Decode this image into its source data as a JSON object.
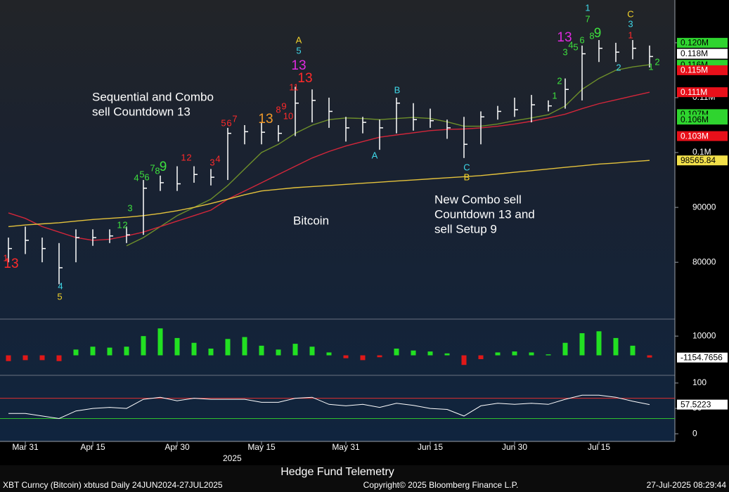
{
  "chart_data": [
    {
      "type": "ohlc",
      "name": "main",
      "categories": [
        null,
        "Mar 31",
        null,
        null,
        null,
        "Apr 15",
        null,
        null,
        null,
        null,
        "Apr 30",
        null,
        null,
        null,
        null,
        "May 15",
        null,
        null,
        null,
        null,
        "May 31",
        null,
        null,
        null,
        null,
        "Jun 15",
        null,
        null,
        null,
        null,
        "Jun 30",
        null,
        null,
        null,
        null,
        "Jul 15",
        null,
        null,
        null
      ],
      "x_year": "2025",
      "close": [
        82500,
        84000,
        82500,
        79000,
        84500,
        84500,
        84800,
        85000,
        93500,
        94500,
        94300,
        96000,
        95500,
        103500,
        103800,
        103700,
        103500,
        109000,
        109500,
        107500,
        104500,
        105500,
        104500,
        109000,
        106000,
        105800,
        104500,
        101500,
        106500,
        107500,
        107800,
        108700,
        108500,
        111500,
        118000,
        119000,
        118300,
        119000,
        117500
      ],
      "high": [
        84500,
        86500,
        84500,
        83500,
        86000,
        86000,
        86000,
        86500,
        95000,
        95800,
        97500,
        97500,
        97000,
        104500,
        105000,
        105500,
        105000,
        112000,
        111500,
        110000,
        106500,
        106500,
        106000,
        110000,
        109000,
        108000,
        106000,
        106500,
        107500,
        108500,
        110000,
        110500,
        109500,
        113500,
        119500,
        120500,
        120000,
        120500,
        119500
      ],
      "low": [
        80000,
        81500,
        80000,
        76000,
        80000,
        83000,
        83500,
        83500,
        85000,
        93000,
        93000,
        94500,
        94000,
        95000,
        101500,
        101500,
        102000,
        103000,
        105500,
        104500,
        102000,
        103500,
        100500,
        103500,
        104000,
        104500,
        102500,
        99000,
        101500,
        106000,
        106500,
        105500,
        107500,
        108000,
        109500,
        116500,
        116500,
        117000,
        115500
      ],
      "bar_color": "#ffffff",
      "series": [
        {
          "color": "#6e8f2a",
          "values": [
            null,
            null,
            null,
            null,
            null,
            null,
            null,
            83000,
            84500,
            86500,
            88500,
            90000,
            91500,
            94000,
            97000,
            100000,
            101500,
            103500,
            105000,
            106000,
            106300,
            106200,
            106000,
            106200,
            106400,
            106200,
            105600,
            104800,
            104800,
            105200,
            105800,
            106300,
            106900,
            108500,
            111500,
            113500,
            115000,
            115600,
            116000
          ]
        },
        {
          "color": "#d2263a",
          "values": [
            89000,
            88000,
            86500,
            85500,
            84500,
            84000,
            84200,
            84800,
            85500,
            86500,
            87500,
            88500,
            89500,
            91500,
            93000,
            94500,
            96000,
            97500,
            99000,
            100200,
            101200,
            102000,
            102800,
            103200,
            103600,
            104000,
            104200,
            104300,
            104500,
            104800,
            105200,
            105700,
            106300,
            107000,
            108000,
            108900,
            109600,
            110300,
            111000
          ]
        },
        {
          "color": "#e4c23c",
          "values": [
            86500,
            86800,
            87000,
            87200,
            87500,
            87800,
            88000,
            88200,
            88500,
            88900,
            89400,
            90000,
            90700,
            91500,
            92300,
            93000,
            93300,
            93600,
            93800,
            94000,
            94200,
            94400,
            94600,
            94800,
            95000,
            95200,
            95400,
            95600,
            95800,
            96100,
            96400,
            96700,
            97000,
            97300,
            97600,
            97900,
            98100,
            98350,
            98565.84
          ]
        }
      ],
      "ylim": [
        69900,
        127800
      ],
      "yticks": [
        80000,
        90000,
        {
          "value": 100000,
          "label": "0.1M"
        },
        {
          "value": 110000,
          "label": "0.11M"
        },
        {
          "value": 120000,
          "label": "0.12M"
        }
      ],
      "value_boxes": [
        {
          "value": 120000,
          "label": "0.120M",
          "color": "#2fd42f"
        },
        {
          "value": 118000,
          "label": "0.118M",
          "color": "#ffffff"
        },
        {
          "value": 116000,
          "label": "0.116M",
          "color": "#2fd42f"
        },
        {
          "value": 115000,
          "label": "0.115M",
          "color": "#e8101a"
        },
        {
          "value": 111000,
          "label": "0.111M",
          "color": "#e8101a"
        },
        {
          "value": 107000,
          "label": "0.107M",
          "color": "#2fd42f"
        },
        {
          "value": 106000,
          "label": "0.106M",
          "color": "#2fd42f"
        },
        {
          "value": 103000,
          "label": "0.103M",
          "color": "#e8101a"
        },
        {
          "value": 98565.84,
          "label": "98565.84",
          "color": "#f2e04a"
        }
      ],
      "annotations": [
        [
          "Sequential and Combo",
          "sell Countdown 13"
        ],
        [
          "Bitcoin"
        ],
        [
          "New Combo sell",
          "Countdown 13 and",
          "sell Setup 9"
        ]
      ],
      "count_labels": [
        {
          "text": "1",
          "color": "#ff2a2a"
        },
        {
          "text": "13",
          "color": "#ff2a2a"
        },
        {
          "text": "4",
          "color": "#3fd8e8"
        },
        {
          "text": "5",
          "color": "#f2d22a"
        },
        {
          "text": "1",
          "color": "#3ee03e"
        },
        {
          "text": "2",
          "color": "#3ee03e"
        },
        {
          "text": "3",
          "color": "#3ee03e"
        },
        {
          "text": "4",
          "color": "#3ee03e"
        },
        {
          "text": "5",
          "color": "#3ee03e"
        },
        {
          "text": "6",
          "color": "#3ee03e"
        },
        {
          "text": "7",
          "color": "#3ee03e"
        },
        {
          "text": "8",
          "color": "#3ee03e"
        },
        {
          "text": "9",
          "color": "#3ee03e"
        },
        {
          "text": "1",
          "color": "#ff2a2a"
        },
        {
          "text": "2",
          "color": "#ff2a2a"
        },
        {
          "text": "3",
          "color": "#ff2a2a"
        },
        {
          "text": "4",
          "color": "#ff2a2a"
        },
        {
          "text": "5",
          "color": "#ff2a2a"
        },
        {
          "text": "6",
          "color": "#ff2a2a"
        },
        {
          "text": "7",
          "color": "#ff2a2a"
        },
        {
          "text": "13",
          "color": "#f29a2a"
        },
        {
          "text": "8",
          "color": "#ff2a2a"
        },
        {
          "text": "9",
          "color": "#ff2a2a"
        },
        {
          "text": "10",
          "color": "#ff2a2a"
        },
        {
          "text": "11",
          "color": "#ff2a2a"
        },
        {
          "text": "13",
          "color": "#e02ae0"
        },
        {
          "text": "13",
          "color": "#ff2a2a"
        },
        {
          "text": "A",
          "color": "#f2d22a"
        },
        {
          "text": "5",
          "color": "#3fd8e8"
        },
        {
          "text": "B",
          "color": "#3fd8e8"
        },
        {
          "text": "A",
          "color": "#3fd8e8"
        },
        {
          "text": "C",
          "color": "#3fd8e8"
        },
        {
          "text": "B",
          "color": "#f2d22a"
        },
        {
          "text": "1",
          "color": "#3ee03e"
        },
        {
          "text": "2",
          "color": "#3ee03e"
        },
        {
          "text": "3",
          "color": "#3ee03e"
        },
        {
          "text": "4",
          "color": "#3ee03e"
        },
        {
          "text": "5",
          "color": "#3ee03e"
        },
        {
          "text": "6",
          "color": "#3ee03e"
        },
        {
          "text": "1",
          "color": "#3fd8e8"
        },
        {
          "text": "7",
          "color": "#3ee03e"
        },
        {
          "text": "13",
          "color": "#e02ae0"
        },
        {
          "text": "8",
          "color": "#3ee03e"
        },
        {
          "text": "9",
          "color": "#3ee03e"
        },
        {
          "text": "C",
          "color": "#f2d22a"
        },
        {
          "text": "3",
          "color": "#3fd8e8"
        },
        {
          "text": "1",
          "color": "#ff2a2a"
        },
        {
          "text": "2",
          "color": "#3fd8e8"
        },
        {
          "text": "1",
          "color": "#3ee03e"
        },
        {
          "text": "2",
          "color": "#3ee03e"
        }
      ]
    },
    {
      "type": "bar",
      "name": "histogram",
      "values": [
        -3000,
        -2500,
        -2500,
        -3000,
        3000,
        4500,
        4000,
        4500,
        10000,
        14000,
        9000,
        6500,
        3500,
        8500,
        9500,
        5000,
        3000,
        6000,
        4500,
        1500,
        -1500,
        -2500,
        -1000,
        3500,
        2500,
        2000,
        1000,
        -5000,
        -2000,
        1500,
        2000,
        1500,
        500,
        6500,
        11500,
        12500,
        9000,
        5000,
        -1154.7656
      ],
      "pos_color": "#22e022",
      "neg_color": "#e01818",
      "ylim": [
        -9300,
        18100
      ],
      "yticks": [
        10000
      ]
    },
    {
      "type": "line",
      "name": "rsi",
      "values": [
        40,
        40,
        35,
        30,
        45,
        50,
        52,
        50,
        68,
        72,
        65,
        70,
        68,
        68,
        68,
        62,
        62,
        70,
        72,
        58,
        55,
        58,
        52,
        60,
        56,
        50,
        48,
        35,
        55,
        60,
        58,
        60,
        58,
        68,
        76,
        76,
        72,
        64,
        57.5223
      ],
      "color": "#ffffff",
      "levels": [
        {
          "value": 70,
          "color": "#e03030"
        },
        {
          "value": 30,
          "color": "#2ec02e"
        }
      ],
      "ylim": [
        -15,
        111
      ],
      "yticks": [
        0,
        50,
        100
      ]
    }
  ],
  "caption": "Hedge Fund Telemetry",
  "footer": {
    "left": "XBT Curncy (Bitcoin) xbtusd  Daily 24JUN2024-27JUL2025",
    "center": "Copyright© 2025 Bloomberg Finance L.P.",
    "right": "27-Jul-2025 08:29:44"
  }
}
